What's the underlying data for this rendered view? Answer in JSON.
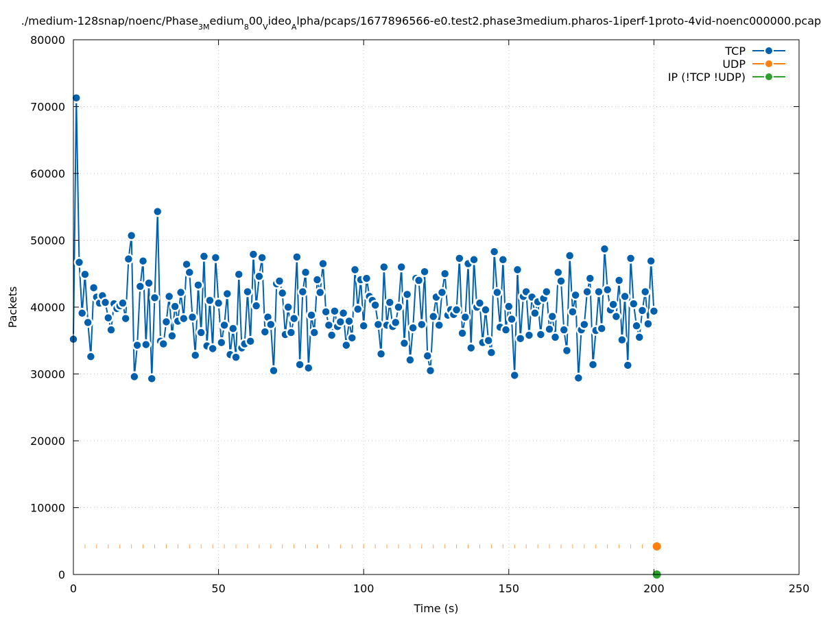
{
  "chart_data": {
    "type": "line",
    "title": "./medium-128snap/noenc/Phase_3Medium_800_video_Alpha/pcaps/1677896566-e0.test2.phase3medium.pharos-1iperf-1proto-4vid-noenc000000.pcap",
    "title_parts": [
      {
        "text": "./medium-128snap/noenc/Phase"
      },
      {
        "text": "3M",
        "sub": true
      },
      {
        "text": "edium"
      },
      {
        "text": "8",
        "sub": true
      },
      {
        "text": "00"
      },
      {
        "text": "V",
        "sub": true
      },
      {
        "text": "ideo"
      },
      {
        "text": "A",
        "sub": true
      },
      {
        "text": "lpha/pcaps/1677896566-e0.test2.phase3medium.pharos-1iperf-1proto-4vid-noenc000000.pcap"
      }
    ],
    "xlabel": "Time (s)",
    "ylabel": "Packets",
    "xlim": [
      0,
      250
    ],
    "ylim": [
      0,
      80000
    ],
    "xticks": [
      0,
      50,
      100,
      150,
      200,
      250
    ],
    "yticks": [
      0,
      10000,
      20000,
      30000,
      40000,
      50000,
      60000,
      70000,
      80000
    ],
    "grid": true,
    "legend_position": "top-right",
    "series": [
      {
        "name": "TCP",
        "color": "#0060ad",
        "x_start": 0,
        "x_step": 1,
        "values": [
          35200,
          71300,
          46700,
          39100,
          44900,
          37700,
          32600,
          42900,
          41500,
          40600,
          41700,
          40700,
          38400,
          36600,
          40500,
          39800,
          40200,
          40600,
          38300,
          47200,
          50700,
          29600,
          34300,
          43100,
          46900,
          34400,
          43600,
          29300,
          41400,
          54300,
          34900,
          34500,
          37800,
          41600,
          35700,
          40100,
          37900,
          42200,
          38300,
          46400,
          45200,
          38500,
          32800,
          43300,
          36200,
          47600,
          34200,
          41000,
          33800,
          47400,
          40600,
          34700,
          37300,
          42000,
          32900,
          36800,
          32500,
          44900,
          33900,
          34500,
          42300,
          34900,
          47900,
          40200,
          44600,
          47400,
          36300,
          38500,
          37400,
          30500,
          43500,
          43900,
          42100,
          35900,
          40000,
          36200,
          38300,
          47500,
          31400,
          42300,
          45200,
          30900,
          38800,
          36200,
          44100,
          42200,
          46500,
          39300,
          37300,
          35800,
          39400,
          37100,
          37800,
          39100,
          34300,
          37900,
          35400,
          45600,
          39700,
          44100,
          37200,
          44300,
          41600,
          41000,
          40300,
          37400,
          33000,
          46000,
          37300,
          40700,
          37100,
          37700,
          40000,
          46000,
          34600,
          41900,
          32100,
          36900,
          44300,
          44000,
          37400,
          45300,
          32700,
          30500,
          38600,
          41500,
          37300,
          42200,
          45000,
          38800,
          39600,
          38900,
          39600,
          47300,
          36100,
          38500,
          46500,
          33900,
          47100,
          40000,
          40600,
          34700,
          39600,
          35000,
          33200,
          48300,
          42200,
          37000,
          47100,
          36600,
          40100,
          38200,
          29800,
          45600,
          35300,
          41600,
          42300,
          35800,
          41500,
          39100,
          40800,
          35900,
          41300,
          42300,
          36700,
          38600,
          35500,
          45200,
          43900,
          36600,
          33500,
          47700,
          39300,
          41800,
          29400,
          36600,
          37400,
          42300,
          44300,
          31400,
          36500,
          42300,
          36800,
          48700,
          42600,
          39600,
          40400,
          38600,
          44000,
          35100,
          41600,
          31300,
          47300,
          40500,
          37200,
          35500,
          39500,
          42300,
          37500,
          46900,
          39400
        ]
      },
      {
        "name": "UDP",
        "color": "#ff7f0e",
        "points": [
          [
            201,
            4200
          ]
        ],
        "marker_level": 4200
      },
      {
        "name": "IP (!TCP  !UDP)",
        "color": "#2ca02c",
        "points": [
          [
            201,
            0
          ]
        ]
      }
    ]
  }
}
